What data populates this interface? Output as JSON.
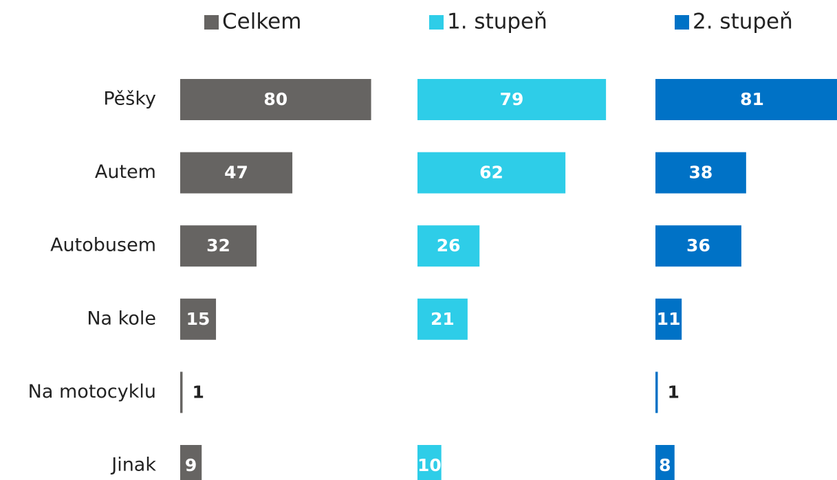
{
  "chart_data": {
    "type": "bar",
    "orientation": "horizontal",
    "categories": [
      "Pěšky",
      "Autem",
      "Autobusem",
      "Na kole",
      "Na motocyklu",
      "Jinak"
    ],
    "series": [
      {
        "name": "Celkem",
        "color": "#666462",
        "values": [
          80,
          47,
          32,
          15,
          1,
          9
        ]
      },
      {
        "name": "1. stupeň",
        "color": "#2ecde8",
        "values": [
          79,
          62,
          26,
          21,
          null,
          10
        ]
      },
      {
        "name": "2. stupeň",
        "color": "#0072c6",
        "values": [
          81,
          38,
          36,
          11,
          1,
          8
        ]
      }
    ]
  }
}
